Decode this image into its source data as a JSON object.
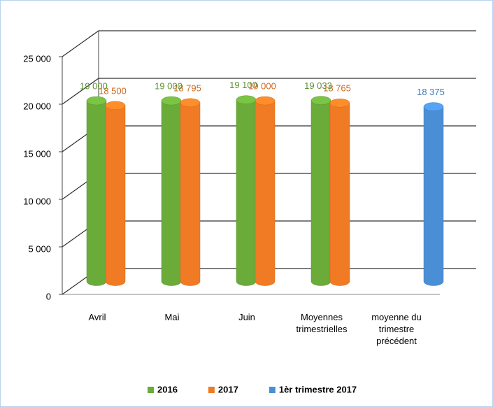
{
  "chart_data": {
    "type": "bar3d",
    "categories": [
      "Avril",
      "Mai",
      "Juin",
      "Moyennes trimestrielles",
      "moyenne du trimestre précédent"
    ],
    "series": [
      {
        "name": "2016",
        "color": "#6aab3a",
        "values": [
          19000,
          19000,
          19100,
          19033,
          null
        ],
        "value_labels": [
          "19 000",
          "19 000",
          "19 100",
          "19 033",
          null
        ]
      },
      {
        "name": "2017",
        "color": "#f07b24",
        "values": [
          18500,
          18795,
          19000,
          18765,
          null
        ],
        "value_labels": [
          "18 500",
          "18 795",
          "19 000",
          "18 765",
          null
        ]
      },
      {
        "name": "1èr trimestre 2017",
        "color": "#4a8fd6",
        "values": [
          null,
          null,
          null,
          null,
          18375
        ],
        "value_labels": [
          null,
          null,
          null,
          null,
          "18 375"
        ]
      }
    ],
    "ylim": [
      0,
      25000
    ],
    "yticks": [
      0,
      {
        "value": 5000,
        "label": "5 000"
      },
      {
        "value": 10000,
        "label": "10 000"
      },
      {
        "value": 15000,
        "label": "15 000"
      },
      {
        "value": 20000,
        "label": "20 000"
      },
      {
        "value": 25000,
        "label": "25 000"
      }
    ],
    "grid": true,
    "legend": "bottom"
  }
}
